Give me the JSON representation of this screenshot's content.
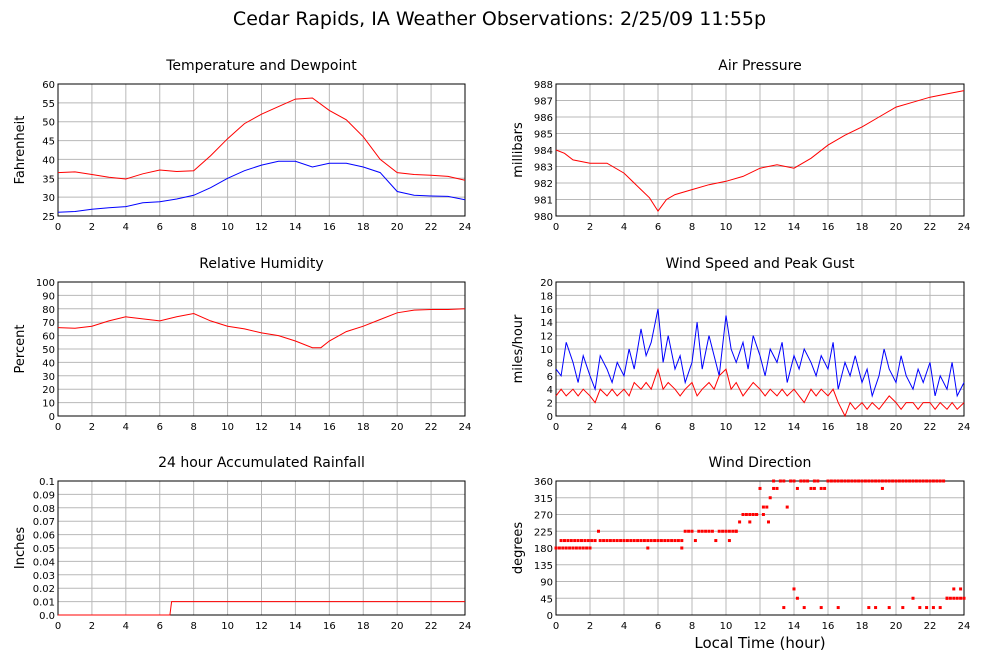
{
  "page": {
    "title": "Cedar Rapids, IA Weather Observations: 2/25/09 11:55p",
    "xaxis_label": "Local Time (hour)"
  },
  "chart_data": [
    {
      "id": "temp",
      "type": "line",
      "title": "Temperature and Dewpoint",
      "ylabel": "Fahrenheit",
      "xlim": [
        0,
        24
      ],
      "ylim": [
        25,
        60
      ],
      "yticks": [
        25,
        30,
        35,
        40,
        45,
        50,
        55,
        60
      ],
      "xticks": [
        0,
        2,
        4,
        6,
        8,
        10,
        12,
        14,
        16,
        18,
        20,
        22,
        24
      ],
      "grid": true,
      "series": [
        {
          "color": "#ff0000",
          "x": [
            0,
            1,
            2,
            3,
            4,
            5,
            6,
            7,
            8,
            9,
            10,
            11,
            12,
            13,
            14,
            15,
            16,
            17,
            18,
            19,
            20,
            21,
            22,
            23,
            24
          ],
          "y": [
            36.5,
            36.7,
            36,
            35.3,
            34.8,
            36.2,
            37.2,
            36.8,
            37,
            41,
            45.5,
            49.5,
            52,
            54,
            56,
            56.3,
            53,
            50.5,
            46,
            40,
            36.5,
            36,
            35.8,
            35.5,
            34.5
          ]
        },
        {
          "color": "#0000ff",
          "x": [
            0,
            1,
            2,
            3,
            4,
            5,
            6,
            7,
            8,
            9,
            10,
            11,
            12,
            13,
            14,
            15,
            16,
            17,
            18,
            19,
            20,
            21,
            22,
            23,
            24
          ],
          "y": [
            26,
            26.2,
            26.8,
            27.2,
            27.5,
            28.5,
            28.8,
            29.5,
            30.5,
            32.5,
            35,
            37,
            38.5,
            39.5,
            39.5,
            38,
            39,
            39,
            38,
            36.5,
            31.5,
            30.5,
            30.3,
            30.2,
            29.3
          ]
        }
      ]
    },
    {
      "id": "pressure",
      "type": "line",
      "title": "Air Pressure",
      "ylabel": "millibars",
      "xlim": [
        0,
        24
      ],
      "ylim": [
        980,
        988
      ],
      "yticks": [
        980,
        981,
        982,
        983,
        984,
        985,
        986,
        987,
        988
      ],
      "xticks": [
        0,
        2,
        4,
        6,
        8,
        10,
        12,
        14,
        16,
        18,
        20,
        22,
        24
      ],
      "grid": true,
      "series": [
        {
          "color": "#ff0000",
          "x": [
            0,
            0.5,
            1,
            2,
            3,
            4,
            5,
            5.5,
            6,
            6.5,
            7,
            8,
            9,
            10,
            11,
            12,
            13,
            14,
            15,
            16,
            17,
            18,
            19,
            20,
            21,
            22,
            23,
            24
          ],
          "y": [
            984,
            983.8,
            983.4,
            983.2,
            983.2,
            982.6,
            981.6,
            981.1,
            980.3,
            981.0,
            981.3,
            981.6,
            981.9,
            982.1,
            982.4,
            982.9,
            983.1,
            982.9,
            983.5,
            984.3,
            984.9,
            985.4,
            986.0,
            986.6,
            986.9,
            987.2,
            987.4,
            987.6
          ]
        }
      ]
    },
    {
      "id": "humidity",
      "type": "line",
      "title": "Relative Humidity",
      "ylabel": "Percent",
      "xlim": [
        0,
        24
      ],
      "ylim": [
        0,
        100
      ],
      "yticks": [
        0,
        10,
        20,
        30,
        40,
        50,
        60,
        70,
        80,
        90,
        100
      ],
      "xticks": [
        0,
        2,
        4,
        6,
        8,
        10,
        12,
        14,
        16,
        18,
        20,
        22,
        24
      ],
      "grid": true,
      "series": [
        {
          "color": "#ff0000",
          "x": [
            0,
            1,
            2,
            3,
            4,
            5,
            6,
            7,
            8,
            9,
            10,
            11,
            12,
            13,
            14,
            15,
            15.5,
            16,
            17,
            18,
            19,
            20,
            21,
            22,
            23,
            24
          ],
          "y": [
            66,
            65.5,
            67,
            71,
            74,
            72.5,
            71,
            74,
            76.5,
            71,
            67,
            65,
            62,
            60,
            56,
            51,
            51,
            56,
            63,
            67,
            72,
            77,
            79,
            79.5,
            79.5,
            80
          ]
        }
      ]
    },
    {
      "id": "wind",
      "type": "line",
      "title": "Wind Speed and Peak Gust",
      "ylabel": "miles/hour",
      "xlim": [
        0,
        24
      ],
      "ylim": [
        0,
        20
      ],
      "yticks": [
        0,
        2,
        4,
        6,
        8,
        10,
        12,
        14,
        16,
        18,
        20
      ],
      "xticks": [
        0,
        2,
        4,
        6,
        8,
        10,
        12,
        14,
        16,
        18,
        20,
        22,
        24
      ],
      "grid": true,
      "series": [
        {
          "color": "#0000ff",
          "x": [
            0,
            0.3,
            0.6,
            1,
            1.3,
            1.6,
            2,
            2.3,
            2.6,
            3,
            3.3,
            3.6,
            4,
            4.3,
            4.6,
            5,
            5.3,
            5.6,
            6,
            6.3,
            6.6,
            7,
            7.3,
            7.6,
            8,
            8.3,
            8.6,
            9,
            9.3,
            9.6,
            10,
            10.3,
            10.6,
            11,
            11.3,
            11.6,
            12,
            12.3,
            12.6,
            13,
            13.3,
            13.6,
            14,
            14.3,
            14.6,
            15,
            15.3,
            15.6,
            16,
            16.3,
            16.6,
            17,
            17.3,
            17.6,
            18,
            18.3,
            18.6,
            19,
            19.3,
            19.6,
            20,
            20.3,
            20.6,
            21,
            21.3,
            21.6,
            22,
            22.3,
            22.6,
            23,
            23.3,
            23.6,
            24
          ],
          "y": [
            7,
            6,
            11,
            8,
            5,
            9,
            6,
            4,
            9,
            7,
            5,
            8,
            6,
            10,
            7,
            13,
            9,
            11,
            16,
            8,
            12,
            7,
            9,
            5,
            8,
            14,
            7,
            12,
            9,
            6,
            15,
            10,
            8,
            11,
            7,
            12,
            9,
            6,
            10,
            8,
            11,
            5,
            9,
            7,
            10,
            8,
            6,
            9,
            7,
            11,
            4,
            8,
            6,
            9,
            5,
            7,
            3,
            6,
            10,
            7,
            5,
            9,
            6,
            4,
            7,
            5,
            8,
            3,
            6,
            4,
            8,
            3,
            5
          ]
        },
        {
          "color": "#ff0000",
          "x": [
            0,
            0.3,
            0.6,
            1,
            1.3,
            1.6,
            2,
            2.3,
            2.6,
            3,
            3.3,
            3.6,
            4,
            4.3,
            4.6,
            5,
            5.3,
            5.6,
            6,
            6.3,
            6.6,
            7,
            7.3,
            7.6,
            8,
            8.3,
            8.6,
            9,
            9.3,
            9.6,
            10,
            10.3,
            10.6,
            11,
            11.3,
            11.6,
            12,
            12.3,
            12.6,
            13,
            13.3,
            13.6,
            14,
            14.3,
            14.6,
            15,
            15.3,
            15.6,
            16,
            16.3,
            16.6,
            17,
            17.3,
            17.6,
            18,
            18.3,
            18.6,
            19,
            19.3,
            19.6,
            20,
            20.3,
            20.6,
            21,
            21.3,
            21.6,
            22,
            22.3,
            22.6,
            23,
            23.3,
            23.6,
            24
          ],
          "y": [
            3,
            4,
            3,
            4,
            3,
            4,
            3,
            2,
            4,
            3,
            4,
            3,
            4,
            3,
            5,
            4,
            5,
            4,
            7,
            4,
            5,
            4,
            3,
            4,
            5,
            3,
            4,
            5,
            4,
            6,
            7,
            4,
            5,
            3,
            4,
            5,
            4,
            3,
            4,
            3,
            4,
            3,
            4,
            3,
            2,
            4,
            3,
            4,
            3,
            4,
            2,
            0,
            2,
            1,
            2,
            1,
            2,
            1,
            2,
            3,
            2,
            1,
            2,
            2,
            1,
            2,
            2,
            1,
            2,
            1,
            2,
            1,
            2
          ]
        }
      ]
    },
    {
      "id": "rain",
      "type": "line",
      "title": "24 hour Accumulated Rainfall",
      "ylabel": "Inches",
      "xlim": [
        0,
        24
      ],
      "ylim": [
        0,
        0.1
      ],
      "yticks": [
        "0.0",
        "0.01",
        "0.02",
        "0.03",
        "0.04",
        "0.05",
        "0.06",
        "0.07",
        "0.08",
        "0.09",
        "0.1"
      ],
      "xticks": [
        0,
        2,
        4,
        6,
        8,
        10,
        12,
        14,
        16,
        18,
        20,
        22,
        24
      ],
      "grid": true,
      "series": [
        {
          "color": "#ff0000",
          "x": [
            0,
            6.6,
            6.7,
            24
          ],
          "y": [
            0,
            0,
            0.01,
            0.01
          ]
        }
      ]
    },
    {
      "id": "direction",
      "type": "scatter",
      "title": "Wind Direction",
      "ylabel": "degrees",
      "xlim": [
        0,
        24
      ],
      "ylim": [
        0,
        360
      ],
      "yticks": [
        0,
        45,
        90,
        135,
        180,
        225,
        270,
        315,
        360
      ],
      "xticks": [
        0,
        2,
        4,
        6,
        8,
        10,
        12,
        14,
        16,
        18,
        20,
        22,
        24
      ],
      "grid": true,
      "series": [
        {
          "color": "#ff0000",
          "x": [
            0,
            0.2,
            0.4,
            0.6,
            0.8,
            1,
            1.2,
            1.4,
            1.6,
            1.8,
            2,
            0.3,
            0.5,
            0.7,
            0.9,
            1.1,
            1.3,
            1.5,
            1.7,
            1.9,
            2.1,
            2.3,
            2.5,
            2.6,
            2.8,
            3,
            3.2,
            3.4,
            3.6,
            3.8,
            4,
            4.2,
            4.4,
            4.6,
            4.8,
            5,
            5.2,
            5.4,
            5.6,
            5.8,
            6,
            6.2,
            6.4,
            6.6,
            6.8,
            7,
            7.2,
            7.4,
            7.6,
            7.8,
            8,
            8.2,
            8.4,
            8.6,
            8.8,
            9,
            9.2,
            9.4,
            9.6,
            9.8,
            10,
            10.2,
            10.4,
            10.6,
            10.8,
            11,
            11.2,
            11.4,
            11.6,
            11.8,
            12,
            12.2,
            12.4,
            12.6,
            12.8,
            13,
            13.2,
            13.4,
            13.6,
            13.8,
            14,
            14.2,
            14.4,
            14.6,
            14.8,
            15,
            15.2,
            15.4,
            15.6,
            15.8,
            16,
            16.2,
            16.4,
            16.6,
            16.8,
            17,
            17.2,
            17.4,
            17.6,
            17.8,
            18,
            18.2,
            18.4,
            18.6,
            18.8,
            19,
            19.2,
            19.4,
            19.6,
            19.8,
            20,
            20.2,
            20.4,
            20.6,
            20.8,
            21,
            21.2,
            21.4,
            21.6,
            21.8,
            22,
            22.2,
            22.4,
            22.6,
            22.8,
            23,
            23.2,
            23.4,
            23.6,
            23.8,
            24,
            5.4,
            7.4,
            10.2,
            10.6,
            11.4,
            11.8,
            12.2,
            12.5,
            12.8,
            13.4,
            14,
            14.2,
            14.6,
            15.2,
            15.6,
            16.6,
            18.4,
            18.8,
            19.2,
            19.6,
            20.4,
            21,
            21.4,
            21.8,
            22.2,
            22.6,
            23,
            23.4,
            23.8
          ],
          "y": [
            180,
            180,
            180,
            180,
            180,
            180,
            180,
            180,
            180,
            180,
            180,
            200,
            200,
            200,
            200,
            200,
            200,
            200,
            200,
            200,
            200,
            200,
            225,
            200,
            200,
            200,
            200,
            200,
            200,
            200,
            200,
            200,
            200,
            200,
            200,
            200,
            200,
            200,
            200,
            200,
            200,
            200,
            200,
            200,
            200,
            200,
            200,
            200,
            225,
            225,
            225,
            200,
            225,
            225,
            225,
            225,
            225,
            200,
            225,
            225,
            225,
            225,
            225,
            225,
            250,
            270,
            270,
            270,
            270,
            270,
            340,
            270,
            290,
            315,
            360,
            340,
            360,
            360,
            290,
            360,
            360,
            340,
            360,
            360,
            360,
            340,
            360,
            360,
            340,
            340,
            360,
            360,
            360,
            360,
            360,
            360,
            360,
            360,
            360,
            360,
            360,
            360,
            360,
            360,
            360,
            360,
            360,
            360,
            360,
            360,
            360,
            360,
            360,
            360,
            360,
            360,
            360,
            360,
            360,
            360,
            360,
            360,
            360,
            360,
            360,
            45,
            45,
            45,
            45,
            45,
            45,
            180,
            180,
            200,
            225,
            250,
            270,
            290,
            250,
            340,
            20,
            70,
            45,
            20,
            340,
            20,
            20,
            20,
            20,
            340,
            20,
            20,
            45,
            20,
            20,
            20,
            20,
            45,
            70,
            70
          ]
        }
      ]
    }
  ]
}
